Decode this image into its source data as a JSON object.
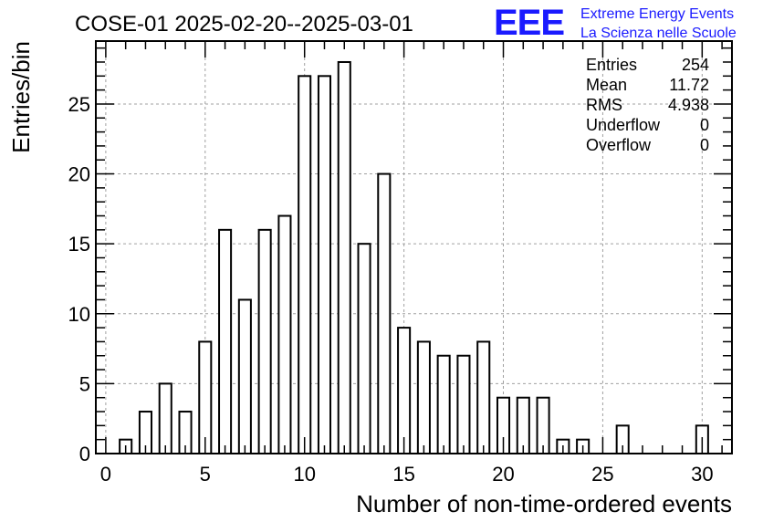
{
  "header": {
    "title": "COSE-01 2025-02-20--2025-03-01",
    "logo_text": "EEE",
    "brand_line1": "Extreme Energy Events",
    "brand_line2": "La Scienza nelle Scuole",
    "brand_color": "#1a1aff"
  },
  "stats": {
    "entries_label": "Entries",
    "entries_value": "254",
    "mean_label": "Mean",
    "mean_value": "11.72",
    "rms_label": "RMS",
    "rms_value": "4.938",
    "underflow_label": "Underflow",
    "underflow_value": "0",
    "overflow_label": "Overflow",
    "overflow_value": "0"
  },
  "chart_data": {
    "type": "bar",
    "xlabel": "Number of non-time-ordered events",
    "ylabel": "Entries/bin",
    "xlim": [
      -0.5,
      31.5
    ],
    "ylim": [
      0,
      29.5
    ],
    "grid": true,
    "x": [
      1,
      2,
      3,
      4,
      5,
      6,
      7,
      8,
      9,
      10,
      11,
      12,
      13,
      14,
      15,
      16,
      17,
      18,
      19,
      20,
      21,
      22,
      23,
      24,
      26,
      30
    ],
    "values": [
      1,
      3,
      5,
      3,
      8,
      16,
      11,
      16,
      17,
      27,
      27,
      28,
      15,
      20,
      9,
      8,
      7,
      7,
      8,
      4,
      4,
      4,
      1,
      1,
      2,
      2
    ],
    "x_ticks": [
      0,
      5,
      10,
      15,
      20,
      25,
      30
    ],
    "x_tick_labels": [
      "0",
      "5",
      "10",
      "15",
      "20",
      "25",
      "30"
    ],
    "y_ticks": [
      0,
      5,
      10,
      15,
      20,
      25
    ],
    "y_tick_labels": [
      "0",
      "5",
      "10",
      "15",
      "20",
      "25"
    ]
  }
}
